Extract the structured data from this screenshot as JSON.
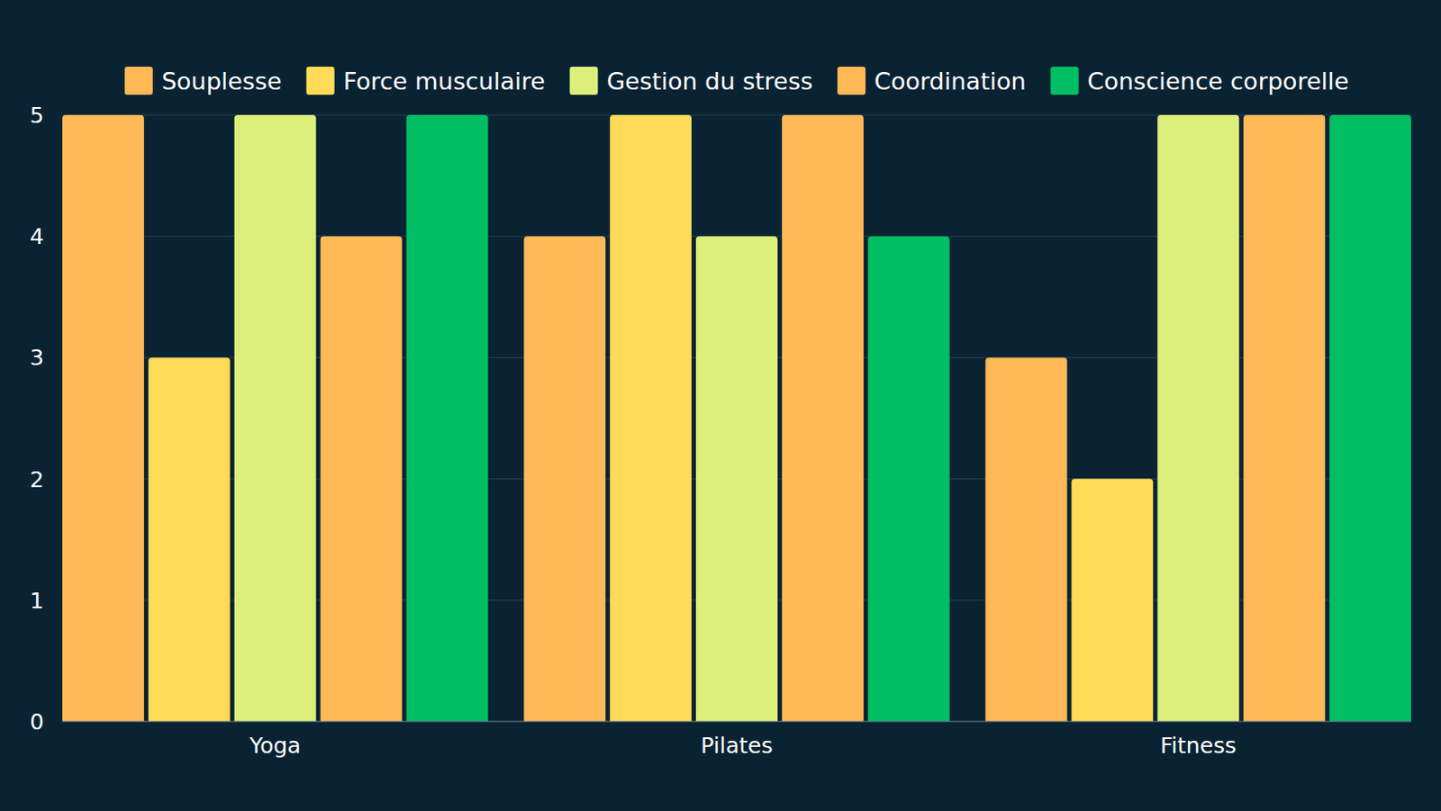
{
  "chart_data": {
    "type": "bar",
    "categories": [
      "Yoga",
      "Pilates",
      "Fitness"
    ],
    "series": [
      {
        "name": "Souplesse",
        "color": "#ffb957",
        "values": [
          5,
          4,
          3
        ]
      },
      {
        "name": "Force musculaire",
        "color": "#ffdb58",
        "values": [
          3,
          5,
          2
        ]
      },
      {
        "name": "Gestion du stress",
        "color": "#dcef7a",
        "values": [
          5,
          4,
          5
        ]
      },
      {
        "name": "Coordination",
        "color": "#ffb957",
        "values": [
          4,
          5,
          5
        ]
      },
      {
        "name": "Conscience corporelle",
        "color": "#00bf63",
        "values": [
          5,
          4,
          5
        ]
      }
    ],
    "ylim": [
      0,
      5
    ],
    "yticks": [
      0,
      1,
      2,
      3,
      4,
      5
    ],
    "grid": true,
    "legend": "top"
  }
}
